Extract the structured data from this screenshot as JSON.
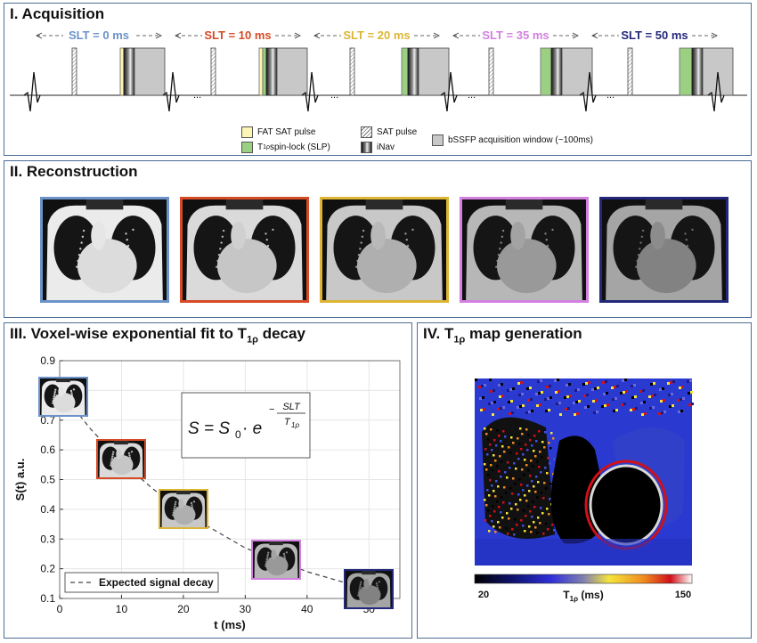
{
  "panel1": {
    "title": "I. Acquisition",
    "slt_labels": [
      {
        "text": "SLT = 0 ms",
        "color": "#6b93c9"
      },
      {
        "text": "SLT = 10 ms",
        "color": "#d64a26"
      },
      {
        "text": "SLT = 20 ms",
        "color": "#dcb535"
      },
      {
        "text": "SLT = 35 ms",
        "color": "#d27fe0"
      },
      {
        "text": "SLT = 50 ms",
        "color": "#23287a"
      }
    ],
    "legend": {
      "fat_sat": "FAT SAT pulse",
      "spin_lock_pre": "T",
      "spin_lock_sub": "1ρ",
      "spin_lock_post": " spin-lock (SLP)",
      "sat": "SAT pulse",
      "inav": "iNav",
      "bssfp": "bSSFP acquisition window (~100ms)"
    },
    "colors": {
      "fat_sat": "#fdf5b3",
      "spin_lock": "#9bd083",
      "bssfp": "#c8c8c8"
    },
    "ellipsis": "..."
  },
  "panel2": {
    "title": "II. Reconstruction",
    "frame_colors": [
      "#6b93c9",
      "#d64a26",
      "#dcb535",
      "#d27fe0",
      "#23287a"
    ]
  },
  "panel3": {
    "title_pre": "III. Voxel-wise exponential fit to T",
    "title_sub": "1ρ",
    "title_post": " decay",
    "equation": {
      "lhs": "S = S",
      "s0_sub": "0",
      "dot": " · e",
      "exp_num": "SLT",
      "exp_den": "T",
      "exp_den_sub": "1ρ"
    },
    "legend_label": "Expected signal decay"
  },
  "panel4": {
    "title_pre": "IV. T",
    "title_sub": "1ρ",
    "title_post": " map generation",
    "colorbar_min": "20",
    "colorbar_max": "150",
    "colorbar_label_pre": "T",
    "colorbar_label_sub": "1ρ",
    "colorbar_label_post": " (ms)"
  },
  "chart_data": {
    "type": "scatter",
    "title": "",
    "xlabel": "t (ms)",
    "ylabel": "S(t) a.u.",
    "xlim": [
      0,
      55
    ],
    "ylim": [
      0.1,
      0.9
    ],
    "xticks": [
      "0",
      "10",
      "20",
      "30",
      "40",
      "50"
    ],
    "yticks": [
      "0.1",
      "0.2",
      "0.3",
      "0.4",
      "0.5",
      "0.6",
      "0.7",
      "0.8",
      "0.9"
    ],
    "grid": true,
    "legend_position": "bottom-left",
    "series": [
      {
        "name": "Expected signal decay",
        "style": "dashed",
        "x": [
          0,
          5,
          10,
          15,
          20,
          25,
          30,
          35,
          40,
          45,
          50
        ],
        "y": [
          0.8,
          0.67,
          0.56,
          0.47,
          0.39,
          0.33,
          0.27,
          0.23,
          0.19,
          0.16,
          0.13
        ]
      }
    ],
    "points": [
      {
        "x": 0,
        "y": 0.78,
        "color": "#6b93c9"
      },
      {
        "x": 10,
        "y": 0.57,
        "color": "#d64a26"
      },
      {
        "x": 20,
        "y": 0.4,
        "color": "#dcb535"
      },
      {
        "x": 35,
        "y": 0.23,
        "color": "#d27fe0"
      },
      {
        "x": 50,
        "y": 0.13,
        "color": "#23287a"
      }
    ]
  }
}
